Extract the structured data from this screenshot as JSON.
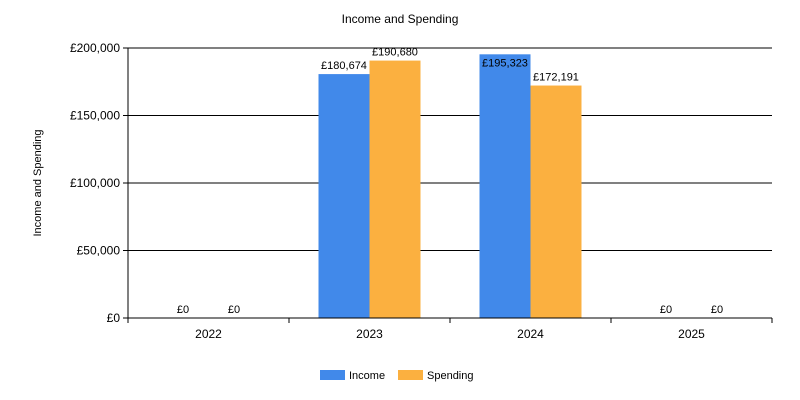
{
  "chart_data": {
    "type": "bar",
    "title": "Income and Spending",
    "xlabel": "",
    "ylabel": "Income and Spending",
    "categories": [
      "2022",
      "2023",
      "2024",
      "2025"
    ],
    "series": [
      {
        "name": "Income",
        "color": "#4189EA",
        "values": [
          0,
          180674,
          195323,
          0
        ],
        "labels": [
          "£0",
          "£180,674",
          "£195,323",
          "£0"
        ]
      },
      {
        "name": "Spending",
        "color": "#FBB040",
        "values": [
          0,
          190680,
          172191,
          0
        ],
        "labels": [
          "£0",
          "£190,680",
          "£172,191",
          "£0"
        ]
      }
    ],
    "ylim": [
      0,
      200000
    ],
    "yticks": [
      0,
      50000,
      100000,
      150000,
      200000
    ],
    "ytick_labels": [
      "£0",
      "£50,000",
      "£100,000",
      "£150,000",
      "£200,000"
    ],
    "grid": true,
    "legend_position": "bottom-center"
  }
}
